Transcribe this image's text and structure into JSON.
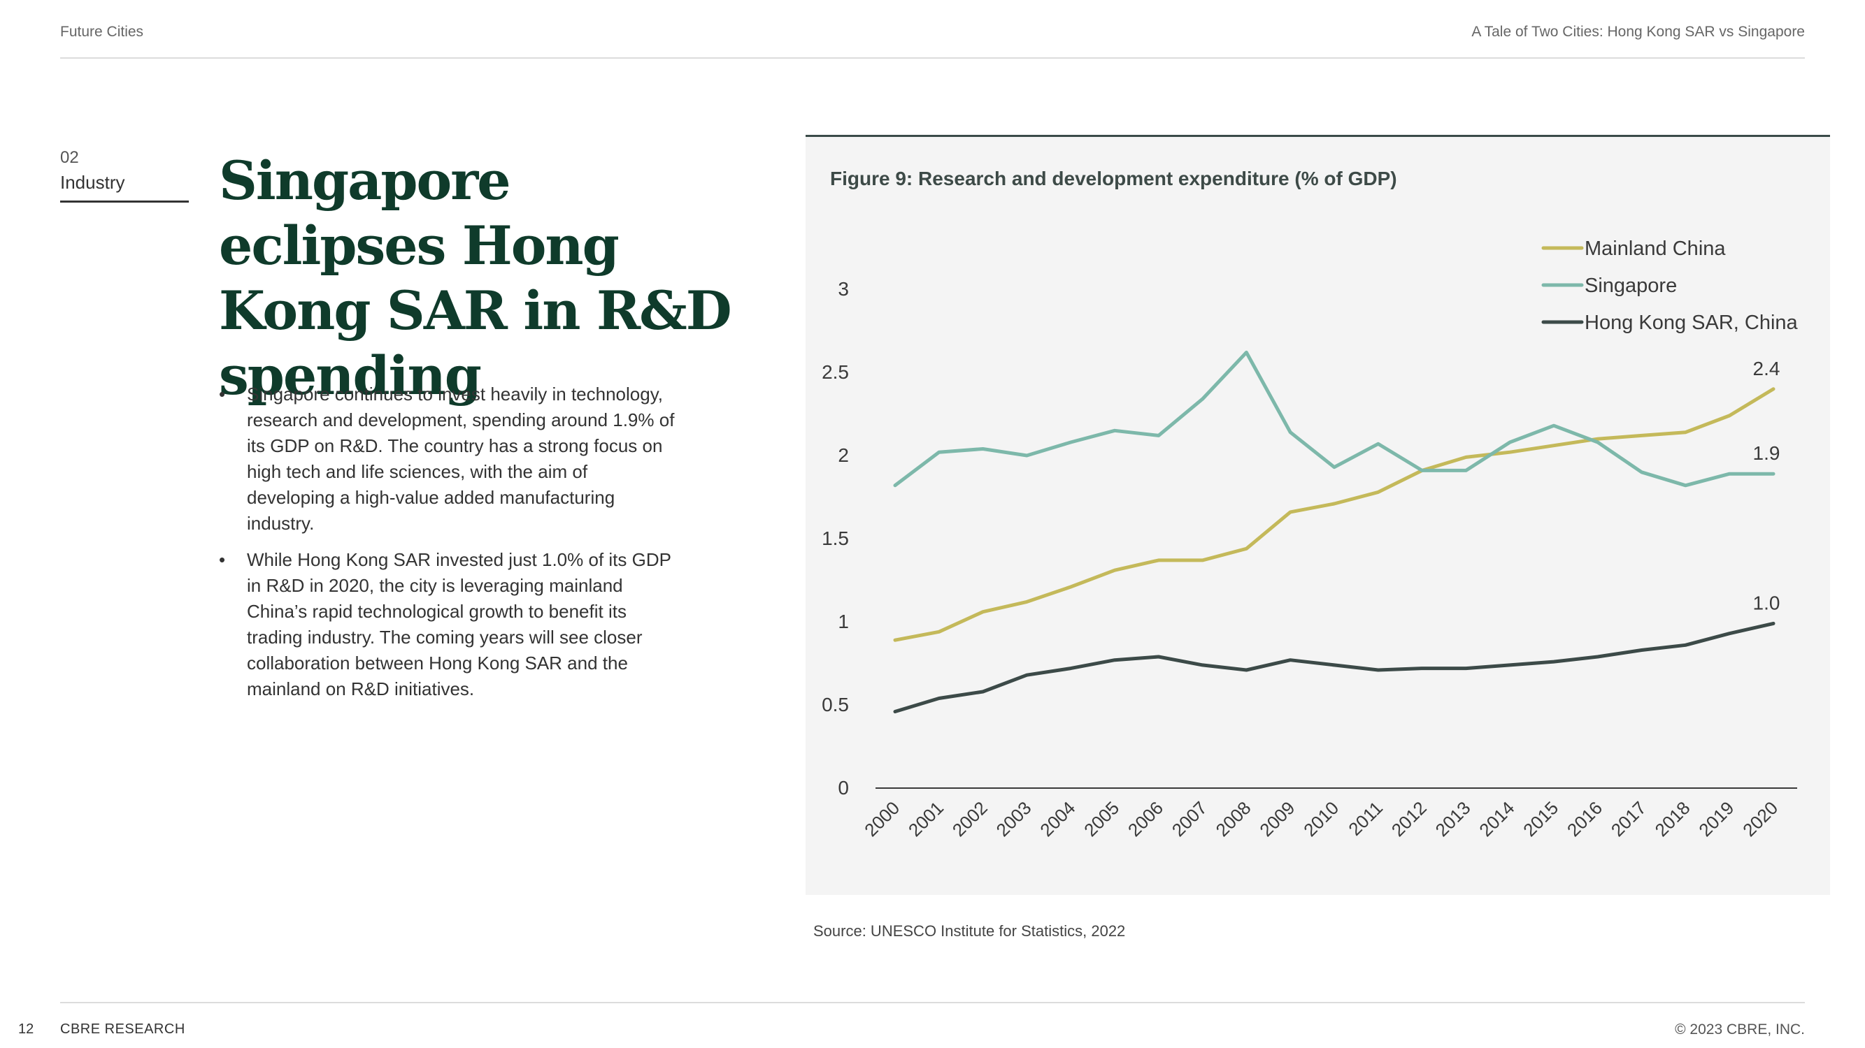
{
  "header": {
    "left": "Future Cities",
    "right": "A Tale of Two Cities: Hong Kong SAR vs Singapore"
  },
  "section": {
    "number": "02",
    "name": "Industry"
  },
  "title": "Singapore eclipses Hong Kong SAR in R&D spending",
  "bullets": [
    "Singapore continues to invest heavily in technology, research and development, spending around 1.9% of its GDP on R&D. The country has a strong focus on high tech and life sciences, with the aim of developing a high-value added manufacturing industry.",
    "While Hong Kong SAR invested just 1.0% of its GDP in R&D in 2020, the city is leveraging mainland China’s rapid technological growth to benefit its trading industry. The coming years will see closer collaboration between Hong Kong SAR and the mainland on R&D initiatives."
  ],
  "bullet_symbol": "•",
  "figure_title": "Figure 9: Research and development expenditure (% of GDP)",
  "source": "Source: UNESCO Institute for Statistics, 2022",
  "footer": {
    "page": "12",
    "brand": "CBRE RESEARCH",
    "copyright": "© 2023 CBRE, INC."
  },
  "chart_data": {
    "type": "line",
    "title": "Figure 9: Research and development expenditure (% of GDP)",
    "x": [
      "2000",
      "2001",
      "2002",
      "2003",
      "2004",
      "2005",
      "2006",
      "2007",
      "2008",
      "2009",
      "2010",
      "2011",
      "2012",
      "2013",
      "2014",
      "2015",
      "2016",
      "2017",
      "2018",
      "2019",
      "2020"
    ],
    "ylim": [
      0,
      3
    ],
    "yticks": [
      "0",
      "0.5",
      "1",
      "1.5",
      "2",
      "2.5",
      "3"
    ],
    "grid": false,
    "legend_position": "top-right",
    "series": [
      {
        "name": "Mainland China",
        "color": "#c4b95a",
        "values": [
          0.89,
          0.94,
          1.06,
          1.12,
          1.21,
          1.31,
          1.37,
          1.37,
          1.44,
          1.66,
          1.71,
          1.78,
          1.91,
          1.99,
          2.02,
          2.06,
          2.1,
          2.12,
          2.14,
          2.24,
          2.4
        ],
        "end_label": "2.4"
      },
      {
        "name": "Singapore",
        "color": "#7db8aa",
        "values": [
          1.82,
          2.02,
          2.04,
          2.0,
          2.08,
          2.15,
          2.12,
          2.34,
          2.62,
          2.14,
          1.93,
          2.07,
          1.91,
          1.91,
          2.08,
          2.18,
          2.08,
          1.9,
          1.82,
          1.89,
          1.89
        ],
        "end_label": "1.9"
      },
      {
        "name": "Hong Kong SAR, China",
        "color": "#3c4a48",
        "values": [
          0.46,
          0.54,
          0.58,
          0.68,
          0.72,
          0.77,
          0.79,
          0.74,
          0.71,
          0.77,
          0.74,
          0.71,
          0.72,
          0.72,
          0.74,
          0.76,
          0.79,
          0.83,
          0.86,
          0.93,
          0.99
        ],
        "end_label": "1.0"
      }
    ]
  }
}
